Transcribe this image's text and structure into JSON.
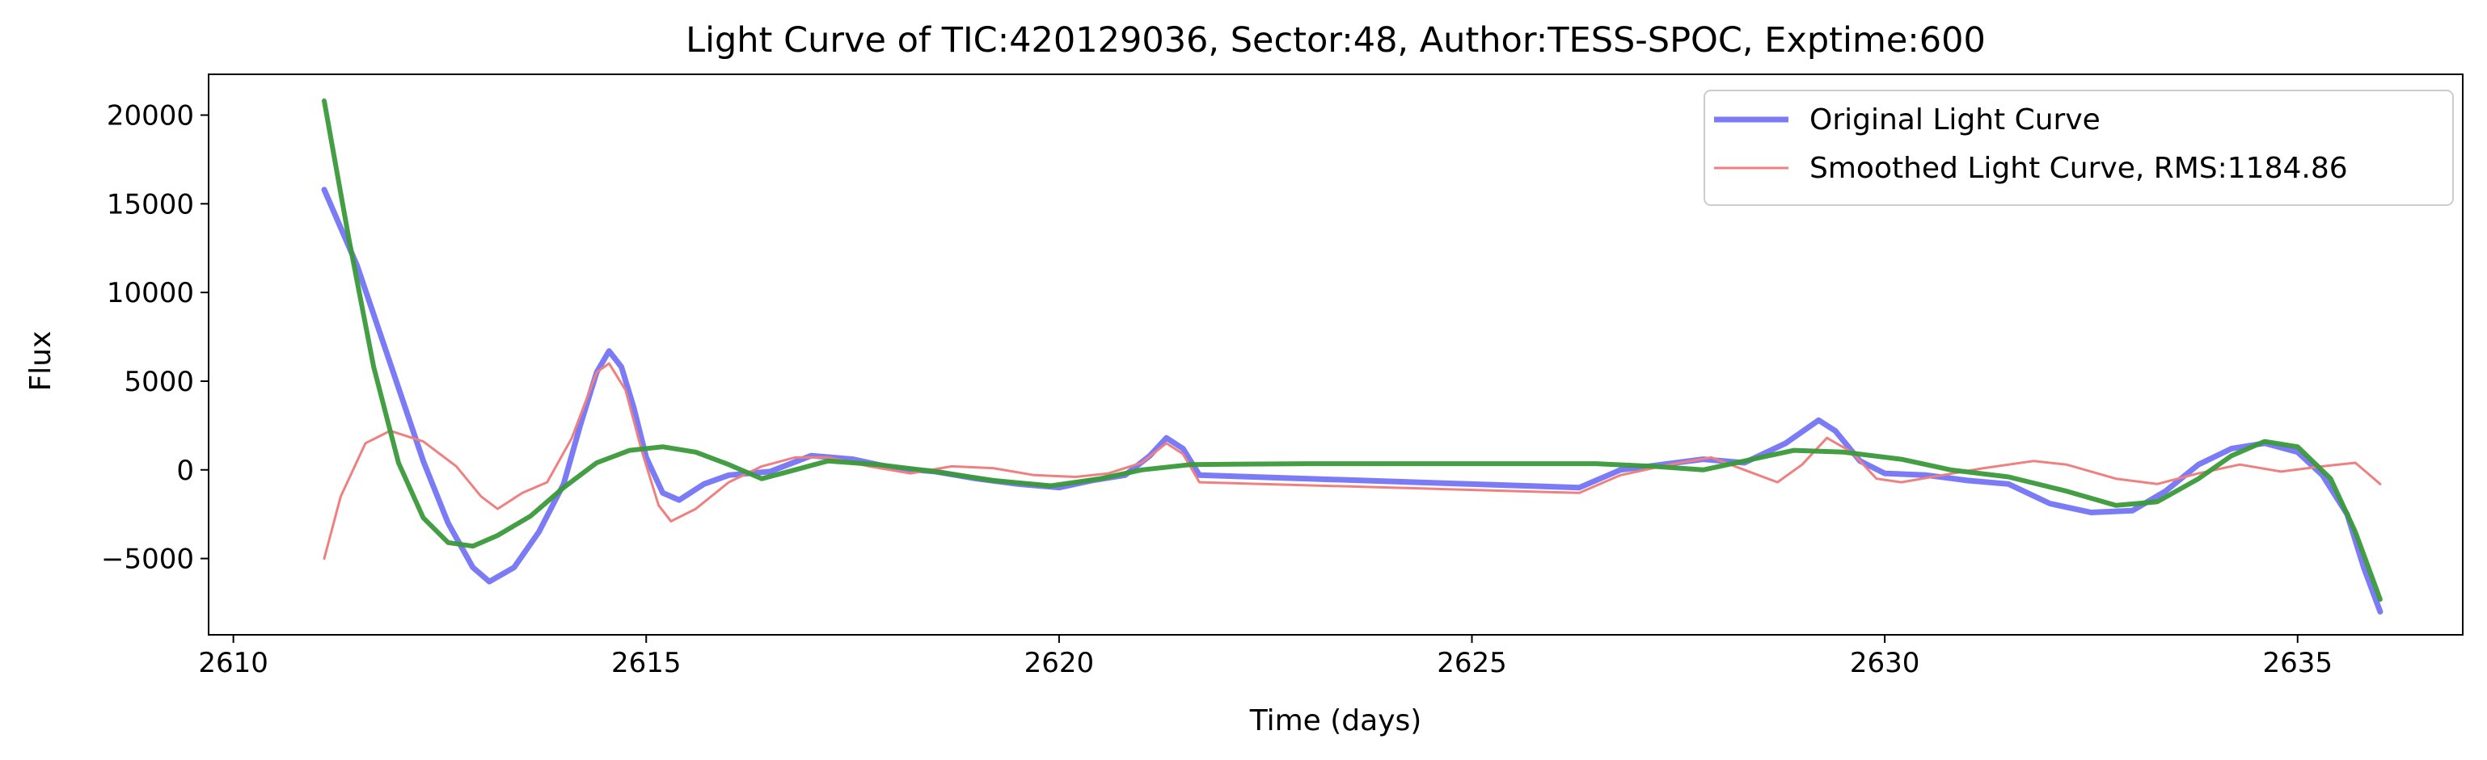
{
  "chart_data": {
    "type": "line",
    "title": "Light Curve of TIC:420129036, Sector:48, Author:TESS-SPOC, Exptime:600",
    "xlabel": "Time (days)",
    "ylabel": "Flux",
    "xlim": [
      2609.7,
      2637.0
    ],
    "ylim": [
      -9300,
      22300
    ],
    "xticks": [
      2610,
      2615,
      2620,
      2625,
      2630,
      2635
    ],
    "xtick_labels": [
      "2610",
      "2615",
      "2620",
      "2625",
      "2630",
      "2635"
    ],
    "yticks": [
      -5000,
      0,
      5000,
      10000,
      15000,
      20000
    ],
    "ytick_labels": [
      "−5000",
      "0",
      "5000",
      "10000",
      "15000",
      "20000"
    ],
    "grid": false,
    "legend_position": "top-right",
    "series": [
      {
        "name": "Original Light Curve",
        "color": "#7b7bf6",
        "points": [
          [
            2611.1,
            15800
          ],
          [
            2611.5,
            11500
          ],
          [
            2611.9,
            6000
          ],
          [
            2612.3,
            500
          ],
          [
            2612.6,
            -3000
          ],
          [
            2612.9,
            -5500
          ],
          [
            2613.1,
            -6300
          ],
          [
            2613.4,
            -5500
          ],
          [
            2613.7,
            -3500
          ],
          [
            2614.0,
            -800
          ],
          [
            2614.2,
            2500
          ],
          [
            2614.4,
            5500
          ],
          [
            2614.55,
            6700
          ],
          [
            2614.7,
            5800
          ],
          [
            2614.85,
            3500
          ],
          [
            2615.0,
            700
          ],
          [
            2615.2,
            -1300
          ],
          [
            2615.4,
            -1700
          ],
          [
            2615.7,
            -800
          ],
          [
            2616.0,
            -300
          ],
          [
            2616.5,
            -100
          ],
          [
            2617.0,
            800
          ],
          [
            2617.5,
            600
          ],
          [
            2618.0,
            100
          ],
          [
            2618.5,
            -100
          ],
          [
            2619.0,
            -500
          ],
          [
            2619.5,
            -800
          ],
          [
            2620.0,
            -1000
          ],
          [
            2620.4,
            -600
          ],
          [
            2620.8,
            -300
          ],
          [
            2621.1,
            800
          ],
          [
            2621.3,
            1800
          ],
          [
            2621.5,
            1200
          ],
          [
            2621.7,
            -300
          ],
          [
            2626.3,
            -1000
          ],
          [
            2626.8,
            0
          ],
          [
            2627.3,
            300
          ],
          [
            2627.8,
            600
          ],
          [
            2628.3,
            400
          ],
          [
            2628.8,
            1500
          ],
          [
            2629.2,
            2800
          ],
          [
            2629.4,
            2200
          ],
          [
            2629.7,
            500
          ],
          [
            2630.0,
            -200
          ],
          [
            2630.5,
            -300
          ],
          [
            2631.0,
            -600
          ],
          [
            2631.5,
            -800
          ],
          [
            2632.0,
            -1900
          ],
          [
            2632.5,
            -2400
          ],
          [
            2633.0,
            -2300
          ],
          [
            2633.4,
            -1200
          ],
          [
            2633.8,
            300
          ],
          [
            2634.2,
            1200
          ],
          [
            2634.6,
            1500
          ],
          [
            2635.0,
            1000
          ],
          [
            2635.3,
            -300
          ],
          [
            2635.6,
            -2500
          ],
          [
            2635.8,
            -5500
          ],
          [
            2636.0,
            -8000
          ]
        ]
      },
      {
        "name": "Smoothed Light Curve, RMS:1184.86",
        "color": "#f08080",
        "points": [
          [
            2611.1,
            -5000
          ],
          [
            2611.3,
            -1500
          ],
          [
            2611.6,
            1500
          ],
          [
            2611.9,
            2200
          ],
          [
            2612.3,
            1600
          ],
          [
            2612.7,
            200
          ],
          [
            2613.0,
            -1500
          ],
          [
            2613.2,
            -2200
          ],
          [
            2613.5,
            -1300
          ],
          [
            2613.8,
            -700
          ],
          [
            2614.1,
            1800
          ],
          [
            2614.4,
            5500
          ],
          [
            2614.55,
            6000
          ],
          [
            2614.75,
            4500
          ],
          [
            2614.95,
            1000
          ],
          [
            2615.15,
            -2000
          ],
          [
            2615.3,
            -2900
          ],
          [
            2615.6,
            -2200
          ],
          [
            2616.0,
            -700
          ],
          [
            2616.4,
            200
          ],
          [
            2616.8,
            700
          ],
          [
            2617.2,
            700
          ],
          [
            2617.7,
            200
          ],
          [
            2618.2,
            -200
          ],
          [
            2618.7,
            200
          ],
          [
            2619.2,
            100
          ],
          [
            2619.7,
            -300
          ],
          [
            2620.2,
            -400
          ],
          [
            2620.6,
            -200
          ],
          [
            2621.0,
            400
          ],
          [
            2621.3,
            1500
          ],
          [
            2621.5,
            900
          ],
          [
            2621.7,
            -700
          ],
          [
            2626.3,
            -1300
          ],
          [
            2626.8,
            -300
          ],
          [
            2627.4,
            300
          ],
          [
            2627.9,
            700
          ],
          [
            2628.3,
            0
          ],
          [
            2628.7,
            -700
          ],
          [
            2629.0,
            300
          ],
          [
            2629.3,
            1800
          ],
          [
            2629.6,
            1000
          ],
          [
            2629.9,
            -500
          ],
          [
            2630.2,
            -700
          ],
          [
            2630.7,
            -300
          ],
          [
            2631.2,
            100
          ],
          [
            2631.8,
            500
          ],
          [
            2632.2,
            300
          ],
          [
            2632.8,
            -500
          ],
          [
            2633.3,
            -800
          ],
          [
            2633.8,
            -200
          ],
          [
            2634.3,
            300
          ],
          [
            2634.8,
            -100
          ],
          [
            2635.3,
            200
          ],
          [
            2635.7,
            400
          ],
          [
            2636.0,
            -800
          ]
        ]
      },
      {
        "name": "",
        "color": "#3a9a3a",
        "points": [
          [
            2611.1,
            20800
          ],
          [
            2611.4,
            13000
          ],
          [
            2611.7,
            5800
          ],
          [
            2612.0,
            400
          ],
          [
            2612.3,
            -2700
          ],
          [
            2612.6,
            -4100
          ],
          [
            2612.9,
            -4300
          ],
          [
            2613.2,
            -3700
          ],
          [
            2613.6,
            -2600
          ],
          [
            2614.0,
            -1000
          ],
          [
            2614.4,
            400
          ],
          [
            2614.8,
            1100
          ],
          [
            2615.2,
            1300
          ],
          [
            2615.6,
            1000
          ],
          [
            2616.0,
            300
          ],
          [
            2616.4,
            -500
          ],
          [
            2616.8,
            0
          ],
          [
            2617.2,
            500
          ],
          [
            2617.8,
            300
          ],
          [
            2618.5,
            -100
          ],
          [
            2619.2,
            -600
          ],
          [
            2619.9,
            -900
          ],
          [
            2620.5,
            -500
          ],
          [
            2621.0,
            0
          ],
          [
            2621.6,
            300
          ],
          [
            2623.0,
            350
          ],
          [
            2625.0,
            350
          ],
          [
            2626.5,
            350
          ],
          [
            2627.2,
            200
          ],
          [
            2627.8,
            0
          ],
          [
            2628.3,
            500
          ],
          [
            2628.9,
            1100
          ],
          [
            2629.5,
            1000
          ],
          [
            2630.2,
            600
          ],
          [
            2630.8,
            0
          ],
          [
            2631.5,
            -400
          ],
          [
            2632.2,
            -1200
          ],
          [
            2632.8,
            -2000
          ],
          [
            2633.3,
            -1800
          ],
          [
            2633.8,
            -500
          ],
          [
            2634.2,
            800
          ],
          [
            2634.6,
            1600
          ],
          [
            2635.0,
            1300
          ],
          [
            2635.4,
            -500
          ],
          [
            2635.7,
            -3500
          ],
          [
            2636.0,
            -7300
          ]
        ]
      }
    ]
  }
}
